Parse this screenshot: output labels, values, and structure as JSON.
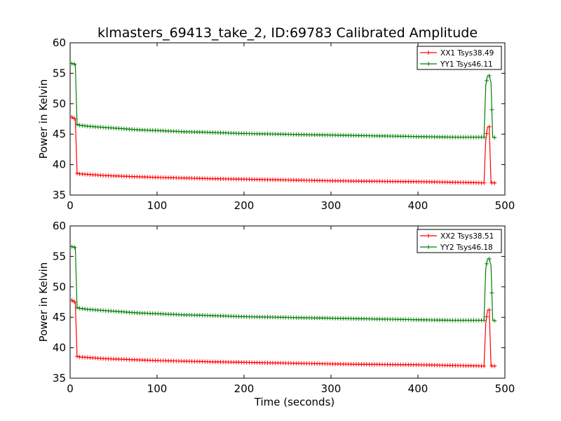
{
  "figure": {
    "title": "klmasters_69413_take_2, ID:69783 Calibrated Amplitude"
  },
  "chart_data": [
    {
      "type": "line",
      "title": "klmasters_69413_take_2, ID:69783 Calibrated Amplitude",
      "xlabel": "",
      "ylabel": "Power in Kelvin",
      "xlim": [
        0,
        500
      ],
      "ylim": [
        35,
        60
      ],
      "xticks": [
        "0",
        "100",
        "200",
        "300",
        "400",
        "500"
      ],
      "yticks": [
        "35",
        "40",
        "45",
        "50",
        "55",
        "60"
      ],
      "grid": false,
      "legend": "top-right",
      "series": [
        {
          "name": "XX1 Tsys38.49",
          "color": "#ff0000",
          "points": [
            [
              2,
              47.8
            ],
            [
              4,
              47.6
            ],
            [
              6,
              47.5
            ],
            [
              8,
              38.6
            ],
            [
              10,
              38.5
            ],
            [
              20,
              38.4
            ],
            [
              40,
              38.2
            ],
            [
              60,
              38.1
            ],
            [
              80,
              38.0
            ],
            [
              100,
              37.9
            ],
            [
              130,
              37.8
            ],
            [
              160,
              37.7
            ],
            [
              200,
              37.6
            ],
            [
              240,
              37.5
            ],
            [
              280,
              37.4
            ],
            [
              320,
              37.3
            ],
            [
              360,
              37.25
            ],
            [
              400,
              37.2
            ],
            [
              440,
              37.1
            ],
            [
              476,
              37.0
            ],
            [
              478,
              44.0
            ],
            [
              480,
              46.2
            ],
            [
              482,
              46.2
            ],
            [
              484,
              37.0
            ],
            [
              486,
              37.0
            ],
            [
              490,
              37.0
            ]
          ]
        },
        {
          "name": "YY1 Tsys46.11",
          "color": "#008000",
          "points": [
            [
              2,
              56.6
            ],
            [
              4,
              56.5
            ],
            [
              6,
              56.5
            ],
            [
              8,
              46.6
            ],
            [
              10,
              46.5
            ],
            [
              20,
              46.3
            ],
            [
              40,
              46.1
            ],
            [
              60,
              45.9
            ],
            [
              80,
              45.7
            ],
            [
              100,
              45.6
            ],
            [
              130,
              45.4
            ],
            [
              160,
              45.3
            ],
            [
              200,
              45.1
            ],
            [
              240,
              45.0
            ],
            [
              280,
              44.9
            ],
            [
              320,
              44.8
            ],
            [
              360,
              44.7
            ],
            [
              400,
              44.6
            ],
            [
              440,
              44.5
            ],
            [
              476,
              44.5
            ],
            [
              478,
              53.0
            ],
            [
              480,
              54.6
            ],
            [
              482,
              54.6
            ],
            [
              484,
              53.5
            ],
            [
              486,
              44.5
            ],
            [
              490,
              44.4
            ]
          ]
        }
      ]
    },
    {
      "type": "line",
      "title": "",
      "xlabel": "Time (seconds)",
      "ylabel": "Power in Kelvin",
      "xlim": [
        0,
        500
      ],
      "ylim": [
        35,
        60
      ],
      "xticks": [
        "0",
        "100",
        "200",
        "300",
        "400",
        "500"
      ],
      "yticks": [
        "35",
        "40",
        "45",
        "50",
        "55",
        "60"
      ],
      "grid": false,
      "legend": "top-right",
      "series": [
        {
          "name": "XX2 Tsys38.51",
          "color": "#ff0000",
          "points": [
            [
              2,
              47.8
            ],
            [
              4,
              47.6
            ],
            [
              6,
              47.5
            ],
            [
              8,
              38.6
            ],
            [
              10,
              38.5
            ],
            [
              20,
              38.4
            ],
            [
              40,
              38.2
            ],
            [
              60,
              38.1
            ],
            [
              80,
              38.0
            ],
            [
              100,
              37.9
            ],
            [
              130,
              37.8
            ],
            [
              160,
              37.7
            ],
            [
              200,
              37.6
            ],
            [
              240,
              37.5
            ],
            [
              280,
              37.4
            ],
            [
              320,
              37.3
            ],
            [
              360,
              37.25
            ],
            [
              400,
              37.2
            ],
            [
              440,
              37.1
            ],
            [
              476,
              37.0
            ],
            [
              478,
              44.0
            ],
            [
              480,
              46.2
            ],
            [
              482,
              46.2
            ],
            [
              484,
              37.0
            ],
            [
              486,
              37.0
            ],
            [
              490,
              37.0
            ]
          ]
        },
        {
          "name": "YY2 Tsys46.18",
          "color": "#008000",
          "points": [
            [
              2,
              56.6
            ],
            [
              4,
              56.5
            ],
            [
              6,
              56.5
            ],
            [
              8,
              46.6
            ],
            [
              10,
              46.5
            ],
            [
              20,
              46.3
            ],
            [
              40,
              46.1
            ],
            [
              60,
              45.9
            ],
            [
              80,
              45.7
            ],
            [
              100,
              45.6
            ],
            [
              130,
              45.4
            ],
            [
              160,
              45.3
            ],
            [
              200,
              45.1
            ],
            [
              240,
              45.0
            ],
            [
              280,
              44.9
            ],
            [
              320,
              44.8
            ],
            [
              360,
              44.7
            ],
            [
              400,
              44.6
            ],
            [
              440,
              44.5
            ],
            [
              476,
              44.5
            ],
            [
              478,
              53.0
            ],
            [
              480,
              54.6
            ],
            [
              482,
              54.6
            ],
            [
              484,
              53.5
            ],
            [
              486,
              44.5
            ],
            [
              490,
              44.4
            ]
          ]
        }
      ]
    }
  ]
}
